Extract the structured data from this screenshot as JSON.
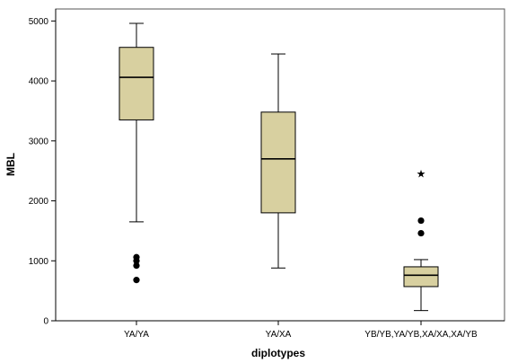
{
  "chart_data": {
    "type": "boxplot",
    "xlabel": "diplotypes",
    "ylabel": "MBL",
    "ylim": [
      0,
      5200
    ],
    "yticks": [
      0,
      1000,
      2000,
      3000,
      4000,
      5000
    ],
    "categories": [
      "YA/YA",
      "YA/XA",
      "YB/YB,YA/YB,XA/XA,XA/YB"
    ],
    "boxes": [
      {
        "category": "YA/YA",
        "whisker_low": 1650,
        "q1": 3350,
        "median": 4060,
        "q3": 4560,
        "whisker_high": 4960,
        "outliers": [
          680,
          920,
          1000,
          1060
        ],
        "extremes": []
      },
      {
        "category": "YA/XA",
        "whisker_low": 880,
        "q1": 1800,
        "median": 2700,
        "q3": 3480,
        "whisker_high": 4450,
        "outliers": [],
        "extremes": []
      },
      {
        "category": "YB/YB,YA/YB,XA/XA,XA/YB",
        "whisker_low": 170,
        "q1": 570,
        "median": 760,
        "q3": 900,
        "whisker_high": 1020,
        "outliers": [
          1460,
          1670
        ],
        "extremes": [
          2460
        ]
      }
    ],
    "box_color": "#d8d0a0",
    "grid": false
  }
}
